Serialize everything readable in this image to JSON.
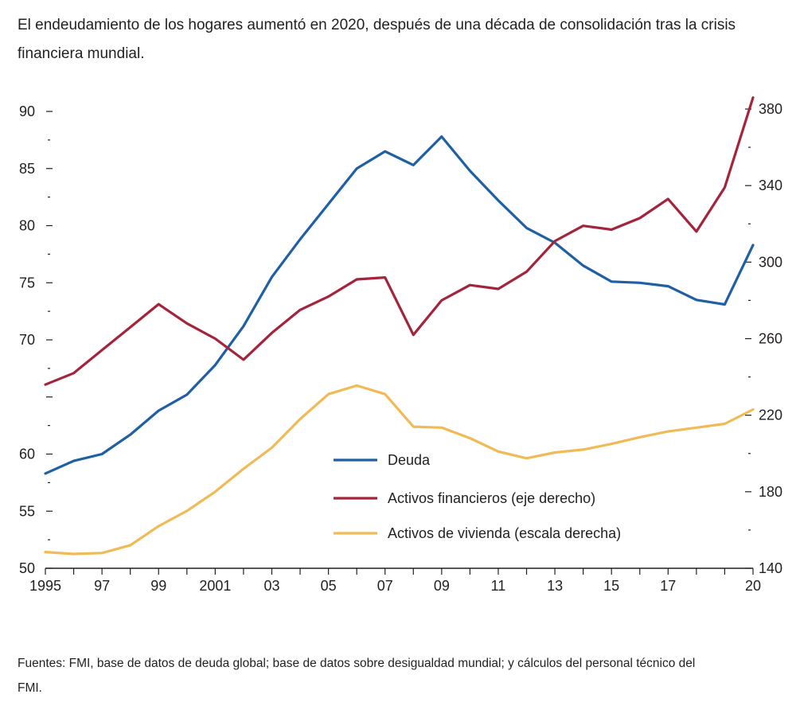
{
  "header": {
    "title": "El endeudamiento de los hogares aumentó en 2020, después de una década de consolidación tras la crisis financiera mundial."
  },
  "footer": {
    "source": "Fuentes: FMI, base de datos de deuda global; base de datos sobre desigualdad mundial; y cálculos del personal técnico del FMI."
  },
  "chart_data": {
    "type": "line",
    "x": [
      1995,
      1996,
      1997,
      1998,
      1999,
      2000,
      2001,
      2002,
      2003,
      2004,
      2005,
      2006,
      2007,
      2008,
      2009,
      2010,
      2011,
      2012,
      2013,
      2014,
      2015,
      2016,
      2017,
      2018,
      2019,
      2020
    ],
    "x_tick_labels": [
      {
        "year": 1995,
        "label": "1995"
      },
      {
        "year": 1997,
        "label": "97"
      },
      {
        "year": 1999,
        "label": "99"
      },
      {
        "year": 2001,
        "label": "2001"
      },
      {
        "year": 2003,
        "label": "03"
      },
      {
        "year": 2005,
        "label": "05"
      },
      {
        "year": 2007,
        "label": "07"
      },
      {
        "year": 2009,
        "label": "09"
      },
      {
        "year": 2011,
        "label": "11"
      },
      {
        "year": 2013,
        "label": "13"
      },
      {
        "year": 2015,
        "label": "15"
      },
      {
        "year": 2017,
        "label": "17"
      },
      {
        "year": 2020,
        "label": "20"
      }
    ],
    "y_left": {
      "range": [
        50,
        90
      ],
      "ticks": [
        50,
        55,
        60,
        65,
        70,
        75,
        80,
        85,
        90
      ],
      "tick_labels": [
        "50",
        "55",
        "60",
        "",
        "70",
        "75",
        "80",
        "85",
        "90"
      ]
    },
    "y_right": {
      "range": [
        140,
        385
      ],
      "ticks": [
        140,
        180,
        220,
        260,
        300,
        340,
        380
      ],
      "tick_labels": [
        "140",
        "180",
        "220",
        "260",
        "300",
        "340",
        "380"
      ]
    },
    "series": [
      {
        "name": "Deuda",
        "axis": "left",
        "color": "#1f5fa4",
        "values": [
          58.3,
          59.4,
          60.0,
          61.7,
          63.8,
          65.2,
          67.8,
          71.2,
          75.5,
          78.8,
          81.9,
          85.0,
          86.5,
          85.3,
          87.8,
          84.8,
          82.2,
          79.8,
          78.5,
          76.5,
          75.1,
          75.0,
          74.7,
          73.5,
          73.1,
          78.3
        ]
      },
      {
        "name": "Activos financieros (eje derecho)",
        "axis": "right",
        "color": "#a3243b",
        "values": [
          236,
          242,
          254,
          266,
          278,
          268,
          260,
          249,
          263,
          275,
          282,
          291,
          292,
          262,
          280,
          288,
          286,
          295,
          311,
          319,
          317,
          323,
          333,
          316,
          339,
          386
        ]
      },
      {
        "name": "Activos de vivienda (escala derecha)",
        "axis": "right",
        "color": "#f0bb56",
        "values": [
          148.5,
          147.5,
          148,
          152,
          162,
          170,
          180,
          192,
          203,
          218,
          231,
          235.5,
          231,
          214,
          213.5,
          208,
          201,
          197.5,
          200.5,
          202,
          205,
          208.5,
          211.5,
          213.5,
          215.5,
          223
        ]
      }
    ],
    "legend_position": "center-bottom",
    "grid": false
  }
}
